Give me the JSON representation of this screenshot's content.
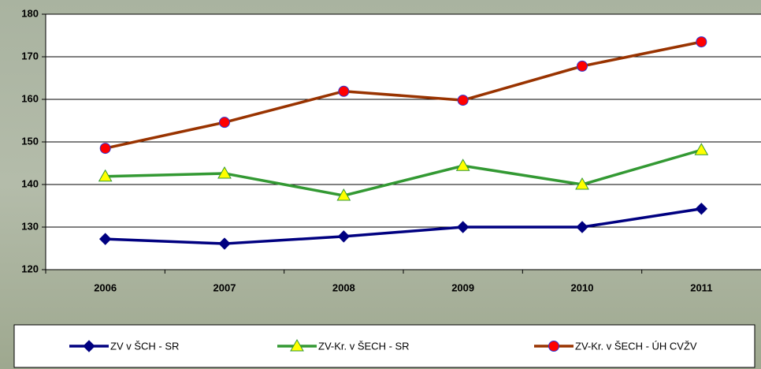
{
  "chart_data": {
    "type": "line",
    "categories": [
      "2006",
      "2007",
      "2008",
      "2009",
      "2010",
      "2011"
    ],
    "series": [
      {
        "name": "ZV v ŠCH - SR",
        "color": "#000080",
        "marker": "diamond",
        "marker_fill": "#000080",
        "marker_stroke": "#000080",
        "values": [
          127.2,
          126.1,
          127.8,
          130,
          130,
          134.3
        ]
      },
      {
        "name": "ZV-Kr.  v ŠECH - SR",
        "color": "#339933",
        "marker": "triangle",
        "marker_fill": "#ffff00",
        "marker_stroke": "#339933",
        "values": [
          141.9,
          142.6,
          137.4,
          144.4,
          140,
          148.1
        ]
      },
      {
        "name": "ZV-Kr. v ŠECH - ÚH CVŽV",
        "color": "#993300",
        "marker": "circle",
        "marker_fill": "#ff0000",
        "marker_stroke": "#3333cc",
        "values": [
          148.5,
          154.6,
          161.9,
          159.8,
          167.8,
          173.5
        ]
      }
    ],
    "ylim": [
      120,
      180
    ],
    "yticks": [
      120,
      130,
      140,
      150,
      160,
      170,
      180
    ],
    "grid": true
  }
}
